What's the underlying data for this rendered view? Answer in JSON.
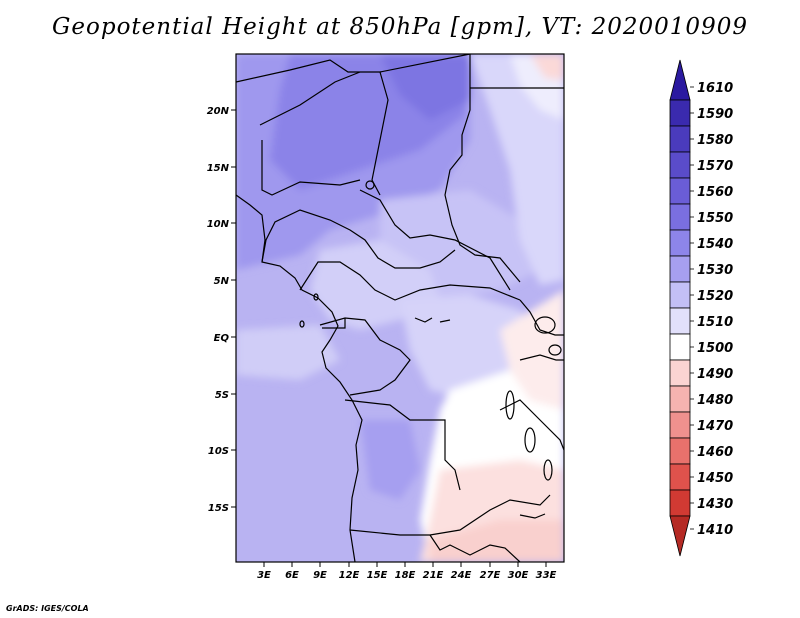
{
  "title": "Geopotential Height at 850hPa [gpm], VT: 2020010909",
  "axes": {
    "lat_ticks": [
      "20N",
      "15N",
      "10N",
      "5N",
      "EQ",
      "5S",
      "10S",
      "15S"
    ],
    "lon_ticks": [
      "3E",
      "6E",
      "9E",
      "12E",
      "15E",
      "18E",
      "21E",
      "24E",
      "27E",
      "30E",
      "33E"
    ]
  },
  "colorbar": {
    "levels": [
      "1610",
      "1590",
      "1580",
      "1570",
      "1560",
      "1550",
      "1540",
      "1530",
      "1520",
      "1510",
      "1500",
      "1490",
      "1480",
      "1470",
      "1460",
      "1450",
      "1430",
      "1410"
    ],
    "colors": [
      "#2b1aa0",
      "#3a2aae",
      "#4a3bbd",
      "#5a4cca",
      "#6a5dd6",
      "#7a6fe0",
      "#8d85ea",
      "#a69ff0",
      "#c3bff6",
      "#e2e0fb",
      "#ffffff",
      "#fbd4d2",
      "#f6b3b0",
      "#f0918e",
      "#e8716c",
      "#df524c",
      "#d13a33",
      "#b52a24"
    ]
  },
  "credit": "GrADS: IGES/COLA"
}
